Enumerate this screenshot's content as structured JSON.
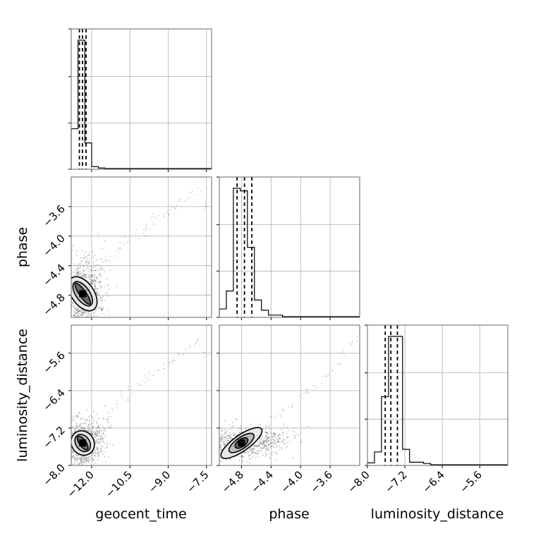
{
  "chart_data": {
    "type": "corner",
    "parameters": [
      "geocent_time",
      "phase",
      "luminosity_distance"
    ],
    "axes": {
      "geocent_time": {
        "range": [
          -12.8,
          -7.3
        ],
        "ticks": [
          -12.0,
          -10.5,
          -9.0,
          -7.5
        ],
        "tick_labels": [
          "−12.0",
          "−10.5",
          "−9.0",
          "−7.5"
        ]
      },
      "phase": {
        "range": [
          -5.1,
          -3.2
        ],
        "ticks": [
          -4.8,
          -4.4,
          -4.0,
          -3.6
        ],
        "tick_labels": [
          "−4.8",
          "−4.4",
          "−4.0",
          "−3.6"
        ]
      },
      "luminosity_distance": {
        "range": [
          -8.0,
          -5.0
        ],
        "ticks": [
          -8.0,
          -7.2,
          -6.4,
          -5.6
        ],
        "tick_labels": [
          "−8.0",
          "−7.2",
          "−6.4",
          "−5.6"
        ]
      }
    },
    "grid": true,
    "quantiles": {
      "geocent_time": [
        -12.48,
        -12.36,
        -12.22
      ],
      "phase": [
        -4.86,
        -4.76,
        -4.66
      ],
      "luminosity_distance": [
        -7.62,
        -7.5,
        -7.36
      ]
    },
    "histograms": {
      "geocent_time": {
        "edges": [
          -12.8,
          -12.5333,
          -12.2667,
          -12.0,
          -11.7333,
          -11.4667
        ],
        "counts": [
          0.31,
          1.0,
          0.2,
          0.015,
          0.004
        ]
      },
      "phase": {
        "edges": [
          -5.1,
          -5.005,
          -4.91,
          -4.815,
          -4.72,
          -4.625,
          -4.53,
          -4.435,
          -4.34,
          -4.245
        ],
        "counts": [
          0.06,
          0.2,
          1.0,
          0.98,
          0.54,
          0.13,
          0.05,
          0.012,
          0.012
        ]
      },
      "luminosity_distance": {
        "edges": [
          -8.0,
          -7.85,
          -7.7,
          -7.55,
          -7.4,
          -7.25,
          -7.1,
          -6.95,
          -6.8,
          -6.65
        ],
        "counts": [
          0.015,
          0.1,
          0.53,
          1.0,
          1.0,
          0.12,
          0.02,
          0.02,
          0.01
        ]
      }
    },
    "scatter": {
      "geocent_time_vs_phase": {
        "center": [
          -12.35,
          -4.78
        ],
        "contours": [
          [
            0.13,
            0.17
          ],
          [
            0.27,
            0.19
          ],
          [
            0.44,
            0.26
          ]
        ],
        "tail_points": [
          [
            -11.8,
            -4.55
          ],
          [
            -11.6,
            -4.42
          ],
          [
            -11.4,
            -4.35
          ],
          [
            -11.2,
            -4.3
          ],
          [
            -11.0,
            -4.2
          ],
          [
            -10.8,
            -4.1
          ],
          [
            -10.5,
            -4.05
          ],
          [
            -10.3,
            -3.98
          ],
          [
            -10.0,
            -3.95
          ],
          [
            -9.8,
            -3.88
          ],
          [
            -9.5,
            -3.8
          ],
          [
            -9.2,
            -3.72
          ],
          [
            -9.0,
            -3.68
          ],
          [
            -8.8,
            -3.6
          ],
          [
            -8.5,
            -3.55
          ],
          [
            -8.3,
            -3.5
          ],
          [
            -8.0,
            -3.45
          ],
          [
            -7.8,
            -3.35
          ],
          [
            -7.6,
            -3.6
          ],
          [
            -11.5,
            -4.3
          ],
          [
            -10.9,
            -4.15
          ],
          [
            -9.9,
            -3.9
          ],
          [
            -9.6,
            -3.75
          ],
          [
            -8.9,
            -3.65
          ]
        ]
      },
      "geocent_time_vs_luminosity_distance": {
        "center": [
          -12.35,
          -7.52
        ],
        "contours": [
          [
            0.13,
            0.17
          ],
          [
            0.27,
            0.2
          ],
          [
            0.44,
            0.27
          ]
        ],
        "tail_points": [
          [
            -11.8,
            -7.2
          ],
          [
            -11.5,
            -7.0
          ],
          [
            -11.2,
            -6.85
          ],
          [
            -11.0,
            -6.7
          ],
          [
            -10.8,
            -6.55
          ],
          [
            -10.5,
            -6.4
          ],
          [
            -10.2,
            -6.3
          ],
          [
            -10.0,
            -6.2
          ],
          [
            -9.8,
            -6.1
          ],
          [
            -9.5,
            -6.0
          ],
          [
            -9.2,
            -5.9
          ],
          [
            -9.0,
            -5.8
          ],
          [
            -8.7,
            -5.7
          ],
          [
            -8.5,
            -5.6
          ],
          [
            -8.2,
            -5.5
          ],
          [
            -8.0,
            -5.4
          ],
          [
            -7.8,
            -5.3
          ],
          [
            -7.6,
            -5.6
          ],
          [
            -11.3,
            -6.95
          ],
          [
            -10.6,
            -6.6
          ],
          [
            -9.7,
            -6.05
          ],
          [
            -8.8,
            -5.75
          ]
        ]
      },
      "phase_vs_luminosity_distance": {
        "center": [
          -4.8,
          -7.52
        ],
        "contours": [
          [
            0.1,
            0.08
          ],
          [
            0.2,
            0.12
          ],
          [
            0.33,
            0.17
          ]
        ],
        "tail_points": [
          [
            -4.5,
            -7.2
          ],
          [
            -4.4,
            -7.0
          ],
          [
            -4.3,
            -6.9
          ],
          [
            -4.2,
            -6.8
          ],
          [
            -4.1,
            -6.7
          ],
          [
            -4.0,
            -6.5
          ],
          [
            -3.9,
            -6.4
          ],
          [
            -3.8,
            -6.3
          ],
          [
            -3.7,
            -6.1
          ],
          [
            -3.6,
            -6.0
          ],
          [
            -3.5,
            -5.8
          ],
          [
            -3.4,
            -5.6
          ],
          [
            -3.3,
            -5.4
          ],
          [
            -3.25,
            -5.3
          ],
          [
            -4.6,
            -7.3
          ],
          [
            -4.25,
            -6.85
          ],
          [
            -3.95,
            -6.45
          ],
          [
            -3.65,
            -6.05
          ]
        ]
      }
    }
  }
}
